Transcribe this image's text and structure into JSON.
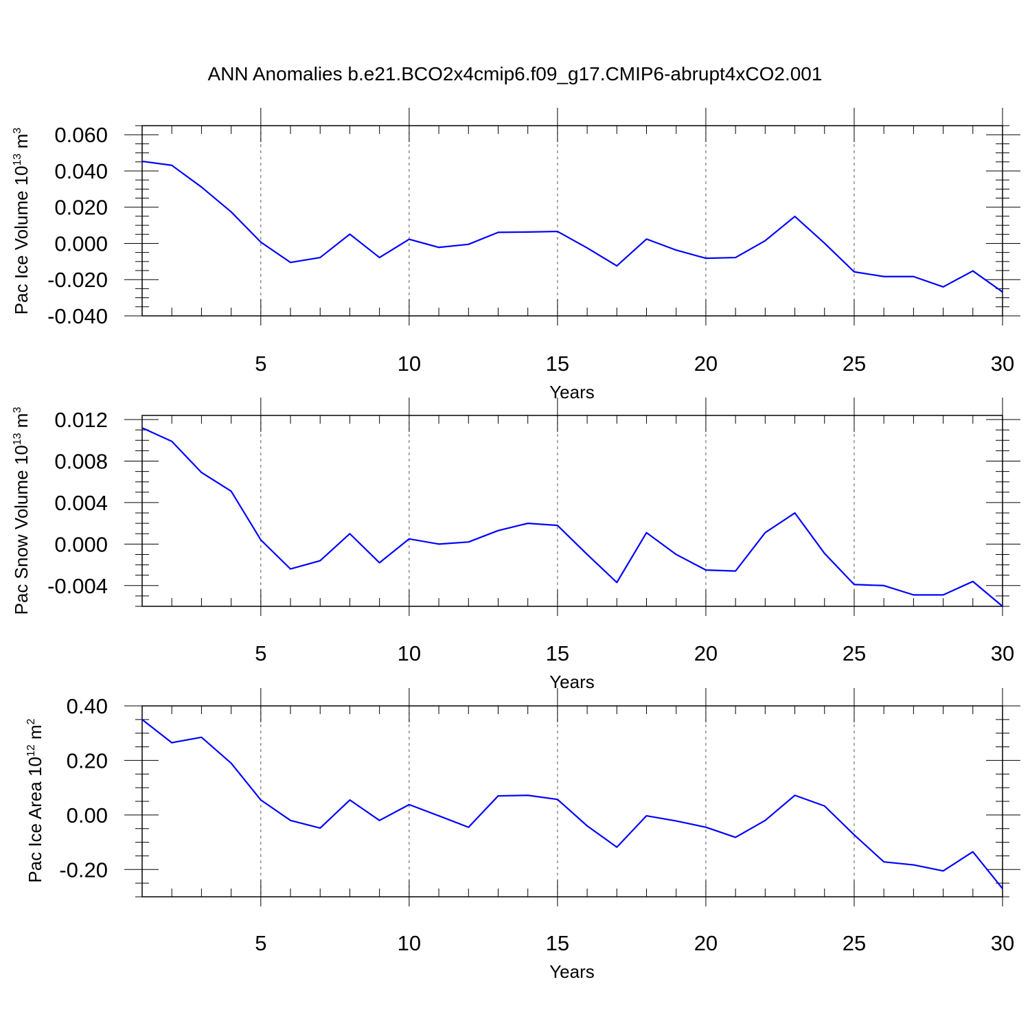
{
  "title": "ANN Anomalies b.e21.BCO2x4cmip6.f09_g17.CMIP6-abrupt4xCO2.001",
  "colors": {
    "line": "#0000ff",
    "axis": "#000000",
    "grid": "#555555"
  },
  "chart_data": [
    {
      "type": "line",
      "ylabel_main": "Pac Ice Volume 10",
      "ylabel_exp": "13",
      "ylabel_unit": " m",
      "ylabel_unit_exp": "3",
      "xlabel": "Years",
      "xlim": [
        1,
        30
      ],
      "ylim": [
        -0.04,
        0.065
      ],
      "xticks": [
        5,
        10,
        15,
        20,
        25,
        30
      ],
      "xtick_labels": [
        "5",
        "10",
        "15",
        "20",
        "25",
        "30"
      ],
      "yticks": [
        -0.04,
        -0.02,
        0.0,
        0.02,
        0.04,
        0.06
      ],
      "ytick_labels": [
        "-0.040",
        "-0.020",
        "0.000",
        "0.020",
        "0.040",
        "0.060"
      ],
      "yminor_step": 0.005,
      "x": [
        1,
        2,
        3,
        4,
        5,
        6,
        7,
        8,
        9,
        10,
        11,
        12,
        13,
        14,
        15,
        16,
        17,
        18,
        19,
        20,
        21,
        22,
        23,
        24,
        25,
        26,
        27,
        28,
        29,
        30
      ],
      "series": [
        {
          "values": [
            0.0453,
            0.0431,
            0.0311,
            0.0174,
            0.0007,
            -0.0105,
            -0.0078,
            0.0051,
            -0.0078,
            0.0023,
            -0.0022,
            -0.0005,
            0.0061,
            0.0063,
            0.0066,
            -0.0025,
            -0.0124,
            0.0024,
            -0.0037,
            -0.0082,
            -0.0078,
            0.0015,
            0.0149,
            0.0001,
            -0.0157,
            -0.0183,
            -0.0183,
            -0.024,
            -0.0152,
            -0.0268
          ]
        }
      ],
      "grid": "vertical dashed at major x ticks"
    },
    {
      "type": "line",
      "ylabel_main": "Pac Snow Volume 10",
      "ylabel_exp": "13",
      "ylabel_unit": " m",
      "ylabel_unit_exp": "3",
      "xlabel": "Years",
      "xlim": [
        1,
        30
      ],
      "ylim": [
        -0.006,
        0.0124
      ],
      "xticks": [
        5,
        10,
        15,
        20,
        25,
        30
      ],
      "xtick_labels": [
        "5",
        "10",
        "15",
        "20",
        "25",
        "30"
      ],
      "yticks": [
        -0.004,
        0.0,
        0.004,
        0.008,
        0.012
      ],
      "ytick_labels": [
        "-0.004",
        "0.000",
        "0.004",
        "0.008",
        "0.012"
      ],
      "yminor_step": 0.001,
      "x": [
        1,
        2,
        3,
        4,
        5,
        6,
        7,
        8,
        9,
        10,
        11,
        12,
        13,
        14,
        15,
        16,
        17,
        18,
        19,
        20,
        21,
        22,
        23,
        24,
        25,
        26,
        27,
        28,
        29,
        30
      ],
      "series": [
        {
          "values": [
            0.0112,
            0.0099,
            0.0069,
            0.0051,
            0.0004,
            -0.0024,
            -0.0016,
            0.001,
            -0.0018,
            0.0005,
            0.0,
            0.0002,
            0.0013,
            0.002,
            0.0018,
            -0.001,
            -0.0037,
            0.0011,
            -0.001,
            -0.0025,
            -0.0026,
            0.0011,
            0.003,
            -0.0009,
            -0.0039,
            -0.004,
            -0.0049,
            -0.0049,
            -0.0036,
            -0.006
          ]
        }
      ],
      "grid": "vertical dashed at major x ticks"
    },
    {
      "type": "line",
      "ylabel_main": "Pac Ice Area 10",
      "ylabel_exp": "12",
      "ylabel_unit": " m",
      "ylabel_unit_exp": "2",
      "xlabel": "Years",
      "xlim": [
        1,
        30
      ],
      "ylim": [
        -0.3,
        0.4
      ],
      "xticks": [
        5,
        10,
        15,
        20,
        25,
        30
      ],
      "xtick_labels": [
        "5",
        "10",
        "15",
        "20",
        "25",
        "30"
      ],
      "yticks": [
        -0.2,
        0.0,
        0.2,
        0.4
      ],
      "ytick_labels": [
        "-0.20",
        "0.00",
        "0.20",
        "0.40"
      ],
      "yminor_step": 0.05,
      "x": [
        1,
        2,
        3,
        4,
        5,
        6,
        7,
        8,
        9,
        10,
        11,
        12,
        13,
        14,
        15,
        16,
        17,
        18,
        19,
        20,
        21,
        22,
        23,
        24,
        25,
        26,
        27,
        28,
        29,
        30
      ],
      "series": [
        {
          "values": [
            0.35,
            0.265,
            0.285,
            0.19,
            0.055,
            -0.02,
            -0.048,
            0.055,
            -0.02,
            0.038,
            -0.003,
            -0.045,
            0.07,
            0.072,
            0.057,
            -0.04,
            -0.118,
            -0.003,
            -0.022,
            -0.045,
            -0.082,
            -0.02,
            0.072,
            0.033,
            -0.073,
            -0.172,
            -0.183,
            -0.205,
            -0.135,
            -0.27
          ]
        }
      ],
      "grid": "vertical dashed at major x ticks"
    }
  ]
}
